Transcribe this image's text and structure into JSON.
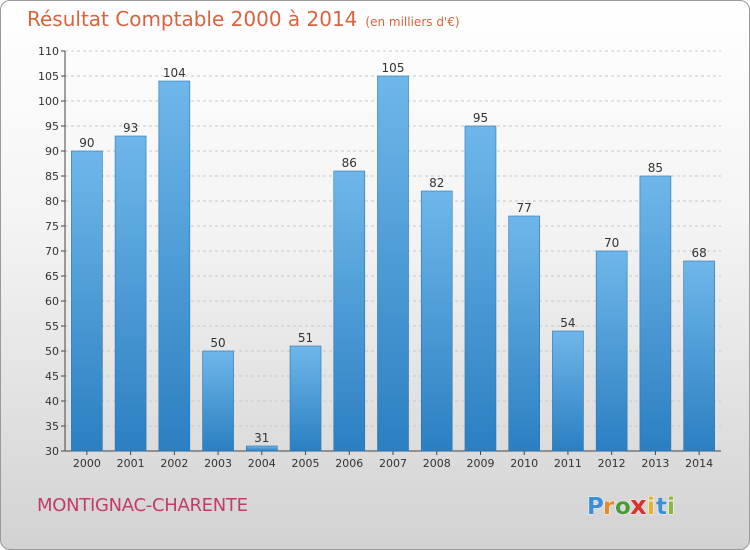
{
  "title": "Résultat Comptable 2000 à 2014",
  "unit": "(en milliers d'€)",
  "commune": "MONTIGNAC-CHARENTE",
  "brand": {
    "letters": [
      "P",
      "r",
      "o",
      "x",
      "i",
      "t",
      "i"
    ],
    "colors": [
      "#3a8fd6",
      "#e8882a",
      "#4a9a3a",
      "#d8342e",
      "#e8b220",
      "#3a8fd6",
      "#8ab83a"
    ]
  },
  "chart_data": {
    "type": "bar",
    "title": "Résultat Comptable 2000 à 2014",
    "subtitle": "(en milliers d'€)",
    "categories": [
      "2000",
      "2001",
      "2002",
      "2003",
      "2004",
      "2005",
      "2006",
      "2007",
      "2008",
      "2009",
      "2010",
      "2011",
      "2012",
      "2013",
      "2014"
    ],
    "values": [
      90,
      93,
      104,
      50,
      31,
      51,
      86,
      105,
      82,
      95,
      77,
      54,
      70,
      85,
      68
    ],
    "ylim": [
      30,
      110
    ],
    "yticks": [
      30,
      35,
      40,
      45,
      50,
      55,
      60,
      65,
      70,
      75,
      80,
      85,
      90,
      95,
      100,
      105,
      110
    ],
    "grid": true,
    "bar_color_top": "#6fb7ea",
    "bar_color_bottom": "#2b7fc1"
  }
}
